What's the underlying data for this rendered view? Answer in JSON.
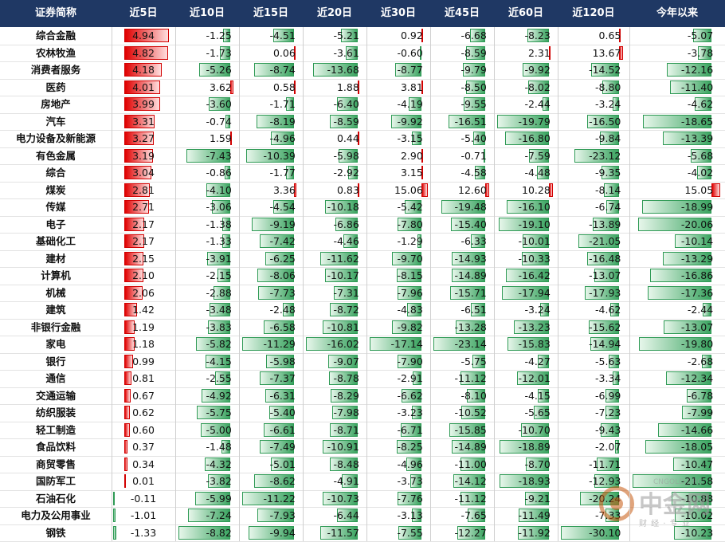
{
  "table": {
    "headers": [
      "证券简称",
      "近5日",
      "近10日",
      "近15日",
      "近20日",
      "近30日",
      "近45日",
      "近60日",
      "近120日",
      "今年以来"
    ],
    "rows": [
      {
        "name": "综合金融",
        "values": [
          4.94,
          -1.25,
          -4.51,
          -5.21,
          0.92,
          -6.68,
          -8.23,
          0.65,
          -5.07
        ]
      },
      {
        "name": "农林牧渔",
        "values": [
          4.82,
          -1.73,
          0.06,
          -3.61,
          -0.6,
          -8.59,
          2.31,
          13.67,
          -3.78
        ]
      },
      {
        "name": "消费者服务",
        "values": [
          4.18,
          -5.26,
          -8.74,
          -13.68,
          -8.77,
          -9.79,
          -9.92,
          -14.52,
          -12.16
        ]
      },
      {
        "name": "医药",
        "values": [
          4.01,
          3.62,
          0.58,
          1.88,
          3.81,
          -8.5,
          -8.02,
          -8.8,
          -11.4
        ]
      },
      {
        "name": "房地产",
        "values": [
          3.99,
          -3.6,
          -1.71,
          -6.4,
          -4.19,
          -9.55,
          -2.44,
          -3.24,
          -4.62
        ]
      },
      {
        "name": "汽车",
        "values": [
          3.31,
          -0.74,
          -8.19,
          -8.59,
          -9.92,
          -16.51,
          -19.79,
          -16.5,
          -18.65
        ]
      },
      {
        "name": "电力设备及新能源",
        "values": [
          3.27,
          1.59,
          -4.96,
          0.44,
          -3.15,
          -5.4,
          -16.8,
          -9.84,
          -13.39
        ]
      },
      {
        "name": "有色金属",
        "values": [
          3.19,
          -7.43,
          -10.39,
          -5.98,
          2.9,
          -0.71,
          -7.59,
          -23.12,
          -5.68
        ]
      },
      {
        "name": "综合",
        "values": [
          3.04,
          -0.86,
          -1.77,
          -2.92,
          3.15,
          -4.58,
          -4.48,
          -9.35,
          -4.02
        ]
      },
      {
        "name": "煤炭",
        "values": [
          2.81,
          -4.1,
          3.36,
          0.83,
          15.06,
          12.6,
          10.28,
          -8.14,
          15.05
        ]
      },
      {
        "name": "传媒",
        "values": [
          2.71,
          -3.06,
          -4.54,
          -10.18,
          -5.42,
          -19.48,
          -16.1,
          -6.74,
          -18.99
        ]
      },
      {
        "name": "电子",
        "values": [
          2.17,
          -1.38,
          -9.19,
          -6.86,
          -7.8,
          -15.4,
          -19.1,
          -13.89,
          -20.06
        ]
      },
      {
        "name": "基础化工",
        "values": [
          2.17,
          -1.33,
          -7.42,
          -4.46,
          -1.29,
          -6.33,
          -10.01,
          -21.05,
          -10.14
        ]
      },
      {
        "name": "建材",
        "values": [
          2.15,
          -3.91,
          -6.25,
          -11.62,
          -9.7,
          -14.93,
          -10.33,
          -16.48,
          -13.29
        ]
      },
      {
        "name": "计算机",
        "values": [
          2.1,
          -2.15,
          -8.06,
          -10.17,
          -8.15,
          -14.89,
          -16.42,
          -13.07,
          -16.86
        ]
      },
      {
        "name": "机械",
        "values": [
          2.06,
          -2.88,
          -7.73,
          -7.31,
          -7.96,
          -15.71,
          -17.94,
          -17.93,
          -17.36
        ]
      },
      {
        "name": "建筑",
        "values": [
          1.42,
          -3.48,
          -2.48,
          -8.72,
          -4.83,
          -6.51,
          -3.24,
          -4.62,
          -2.44
        ]
      },
      {
        "name": "非银行金融",
        "values": [
          1.19,
          -3.83,
          -6.58,
          -10.81,
          -9.82,
          -13.28,
          -13.23,
          -15.62,
          -13.07
        ]
      },
      {
        "name": "家电",
        "values": [
          1.18,
          -5.82,
          -11.29,
          -16.02,
          -17.14,
          -23.14,
          -15.83,
          -14.94,
          -19.8
        ]
      },
      {
        "name": "银行",
        "values": [
          0.99,
          -4.15,
          -5.98,
          -9.07,
          -7.9,
          -5.75,
          -4.27,
          -5.63,
          -2.68
        ]
      },
      {
        "name": "通信",
        "values": [
          0.81,
          -2.55,
          -7.37,
          -8.78,
          -2.91,
          -11.12,
          -12.01,
          -3.34,
          -12.34
        ]
      },
      {
        "name": "交通运输",
        "values": [
          0.67,
          -4.92,
          -6.31,
          -8.29,
          -6.62,
          -8.1,
          -4.15,
          -6.99,
          -6.78
        ]
      },
      {
        "name": "纺织服装",
        "values": [
          0.62,
          -5.75,
          -5.4,
          -7.98,
          -3.23,
          -10.52,
          -5.65,
          -7.23,
          -7.99
        ]
      },
      {
        "name": "轻工制造",
        "values": [
          0.6,
          -5.0,
          -6.61,
          -8.71,
          -6.71,
          -15.85,
          -10.7,
          -9.43,
          -14.66
        ]
      },
      {
        "name": "食品饮料",
        "values": [
          0.37,
          -1.48,
          -7.49,
          -10.91,
          -8.25,
          -14.89,
          -18.89,
          -2.07,
          -18.05
        ]
      },
      {
        "name": "商贸零售",
        "values": [
          0.34,
          -4.32,
          -5.01,
          -8.48,
          -4.96,
          -11.0,
          -8.7,
          -11.71,
          -10.47
        ]
      },
      {
        "name": "国防军工",
        "values": [
          0.01,
          -3.82,
          -8.62,
          -4.91,
          -3.73,
          -14.12,
          -18.93,
          -12.93,
          -21.58
        ]
      },
      {
        "name": "石油石化",
        "values": [
          -0.11,
          -5.99,
          -11.22,
          -10.73,
          -7.76,
          -11.12,
          -9.21,
          -20.24,
          -10.88
        ]
      },
      {
        "name": "电力及公用事业",
        "values": [
          -1.01,
          -7.24,
          -7.93,
          -6.44,
          -3.13,
          -7.65,
          -11.49,
          -7.33,
          -10.02
        ]
      },
      {
        "name": "钢铁",
        "values": [
          -1.33,
          -8.82,
          -9.94,
          -11.57,
          -7.55,
          -12.27,
          -11.92,
          -30.1,
          -10.23
        ]
      }
    ]
  },
  "watermark": {
    "brand": "中金网",
    "sub": "财 经 · 专 业",
    "domain": "CNGOLD.ORG"
  },
  "colors": {
    "header_bg": "#1f3864",
    "positive": "#e00000",
    "negative": "#2f9a55"
  }
}
